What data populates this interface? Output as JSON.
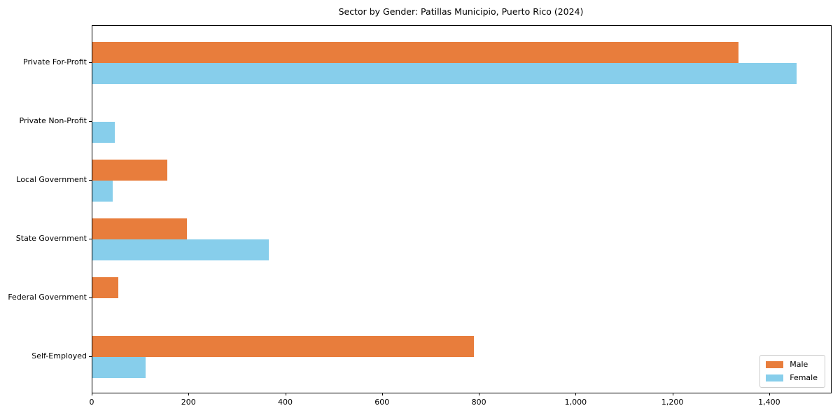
{
  "chart_data": {
    "type": "bar",
    "orientation": "horizontal",
    "title": "Sector by Gender: Patillas Municipio, Puerto Rico (2024)",
    "xlabel": "",
    "ylabel": "",
    "categories": [
      "Private For-Profit",
      "Private Non-Profit",
      "Local Government",
      "State Government",
      "Federal Government",
      "Self-Employed"
    ],
    "series": [
      {
        "name": "Male",
        "color": "#e87d3c",
        "values": [
          1335,
          0,
          155,
          195,
          54,
          788
        ]
      },
      {
        "name": "Female",
        "color": "#87ceeb",
        "values": [
          1455,
          46,
          42,
          365,
          0,
          110
        ]
      }
    ],
    "xlim": [
      0,
      1526
    ],
    "xticks": [
      0,
      200,
      400,
      600,
      800,
      1000,
      1200,
      1400
    ],
    "xtick_labels": [
      "0",
      "200",
      "400",
      "600",
      "800",
      "1,000",
      "1,200",
      "1,400"
    ],
    "grid": false,
    "legend_position": "lower right"
  }
}
